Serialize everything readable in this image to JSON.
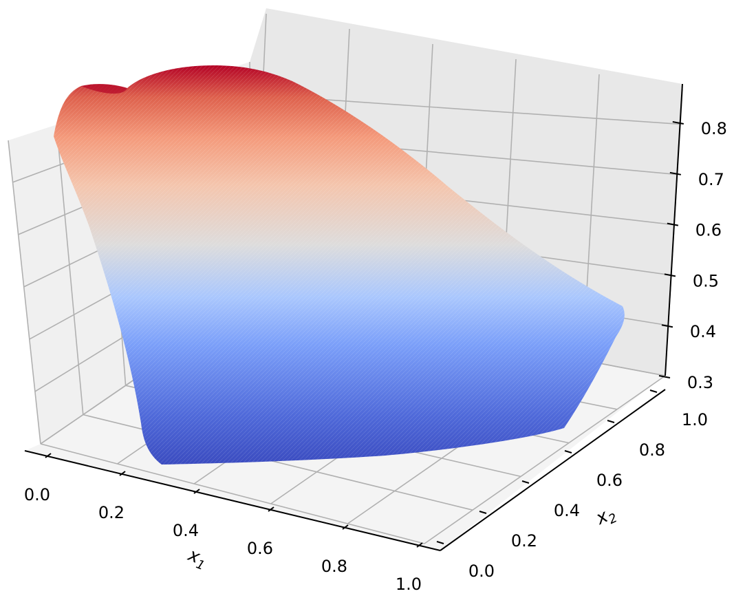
{
  "chart_data": {
    "type": "surface3d",
    "colormap": "coolwarm",
    "x1": {
      "ticks": [
        0.0,
        0.2,
        0.4,
        0.6,
        0.8,
        1.0
      ],
      "tick_labels": [
        "0.0",
        "0.2",
        "0.4",
        "0.6",
        "0.8",
        "1.0"
      ],
      "label_main": "x",
      "label_sub": "1",
      "range": [
        0.0,
        1.0
      ]
    },
    "x2": {
      "ticks": [
        0.0,
        0.2,
        0.4,
        0.6,
        0.8,
        1.0
      ],
      "tick_labels": [
        "0.0",
        "0.2",
        "0.4",
        "0.6",
        "0.8",
        "1.0"
      ],
      "label_main": "x",
      "label_sub": "2",
      "range": [
        0.0,
        1.0
      ]
    },
    "z": {
      "ticks": [
        0.3,
        0.4,
        0.5,
        0.6,
        0.7,
        0.8
      ],
      "tick_labels": [
        "0.3",
        "0.4",
        "0.5",
        "0.6",
        "0.7",
        "0.8"
      ],
      "range": [
        0.3,
        0.88
      ]
    },
    "surface": {
      "description_values": "z values at sampled (x1, x2) points",
      "points": [
        {
          "x1": 0.02,
          "x2": 0.98,
          "z": 0.86
        },
        {
          "x1": 0.0,
          "x2": 0.6,
          "z": 0.72
        },
        {
          "x1": 0.1,
          "x2": 0.0,
          "z": 0.42
        },
        {
          "x1": 0.5,
          "x2": 0.0,
          "z": 0.38
        },
        {
          "x1": 0.85,
          "x2": 0.05,
          "z": 0.36
        },
        {
          "x1": 1.0,
          "x2": 0.5,
          "z": 0.42
        },
        {
          "x1": 0.9,
          "x2": 0.95,
          "z": 0.47
        },
        {
          "x1": 0.4,
          "x2": 1.0,
          "z": 0.78
        }
      ],
      "z_min": 0.32,
      "z_max": 0.87
    },
    "grid": true
  }
}
